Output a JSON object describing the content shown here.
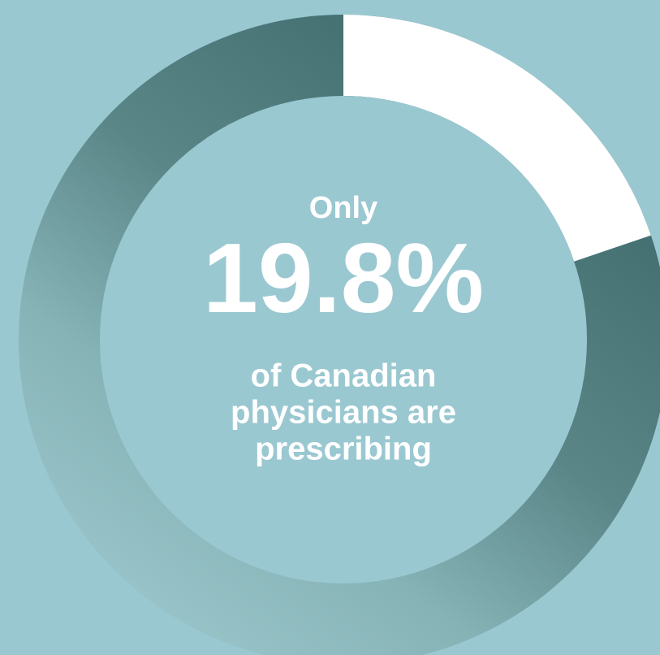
{
  "chart_data": {
    "type": "donut",
    "lead": "Only",
    "values": [
      19.8
    ],
    "value_labels": [
      "19.8%"
    ],
    "color": "#ffffff",
    "caption": [
      "of Canadian",
      "physicians are",
      "prescribing"
    ]
  }
}
